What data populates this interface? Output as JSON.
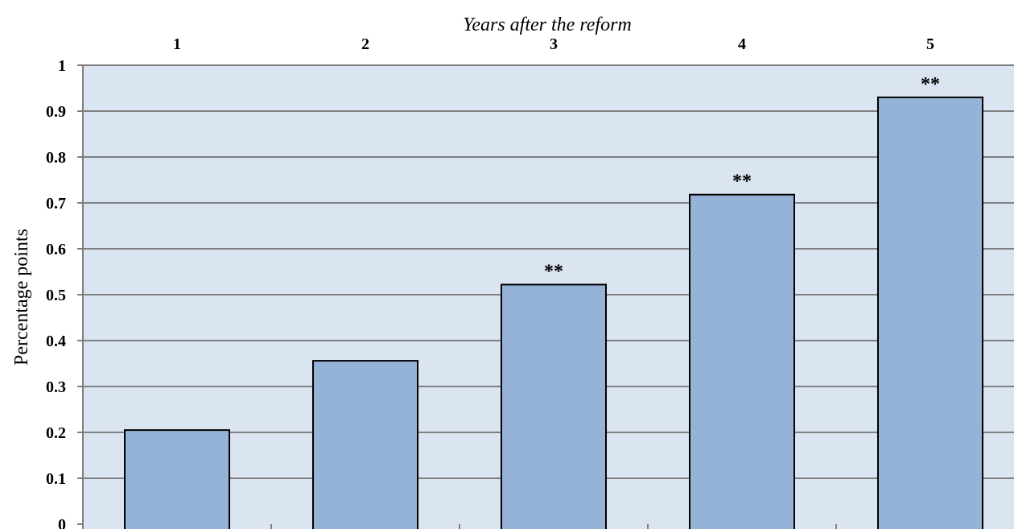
{
  "chart_data": {
    "type": "bar",
    "xlabel": "Years after the reform",
    "ylabel": "Percentage points",
    "categories": [
      "1",
      "2",
      "3",
      "4",
      "5"
    ],
    "values": [
      0.205,
      0.356,
      0.522,
      0.718,
      0.93
    ],
    "annotations": [
      "",
      "",
      "**",
      "**",
      "**"
    ],
    "ylim": [
      0,
      1
    ],
    "yticks": [
      "0",
      "0.1",
      "0.2",
      "0.3",
      "0.4",
      "0.5",
      "0.6",
      "0.7",
      "0.8",
      "0.9",
      "1"
    ],
    "grid": true,
    "x_axis_position": "top",
    "colors": {
      "plot_background": "#dbe4f1",
      "bar_fill": "#95b3d7",
      "bar_stroke": "#000000",
      "gridline": "#808080"
    }
  }
}
